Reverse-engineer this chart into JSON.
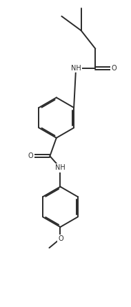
{
  "bg_color": "#ffffff",
  "line_color": "#2a2a2a",
  "line_width": 1.4,
  "font_size": 7.0,
  "figsize": [
    1.9,
    4.45
  ],
  "dpi": 100,
  "xlim": [
    0,
    10
  ],
  "ylim": [
    0,
    23.5
  ]
}
